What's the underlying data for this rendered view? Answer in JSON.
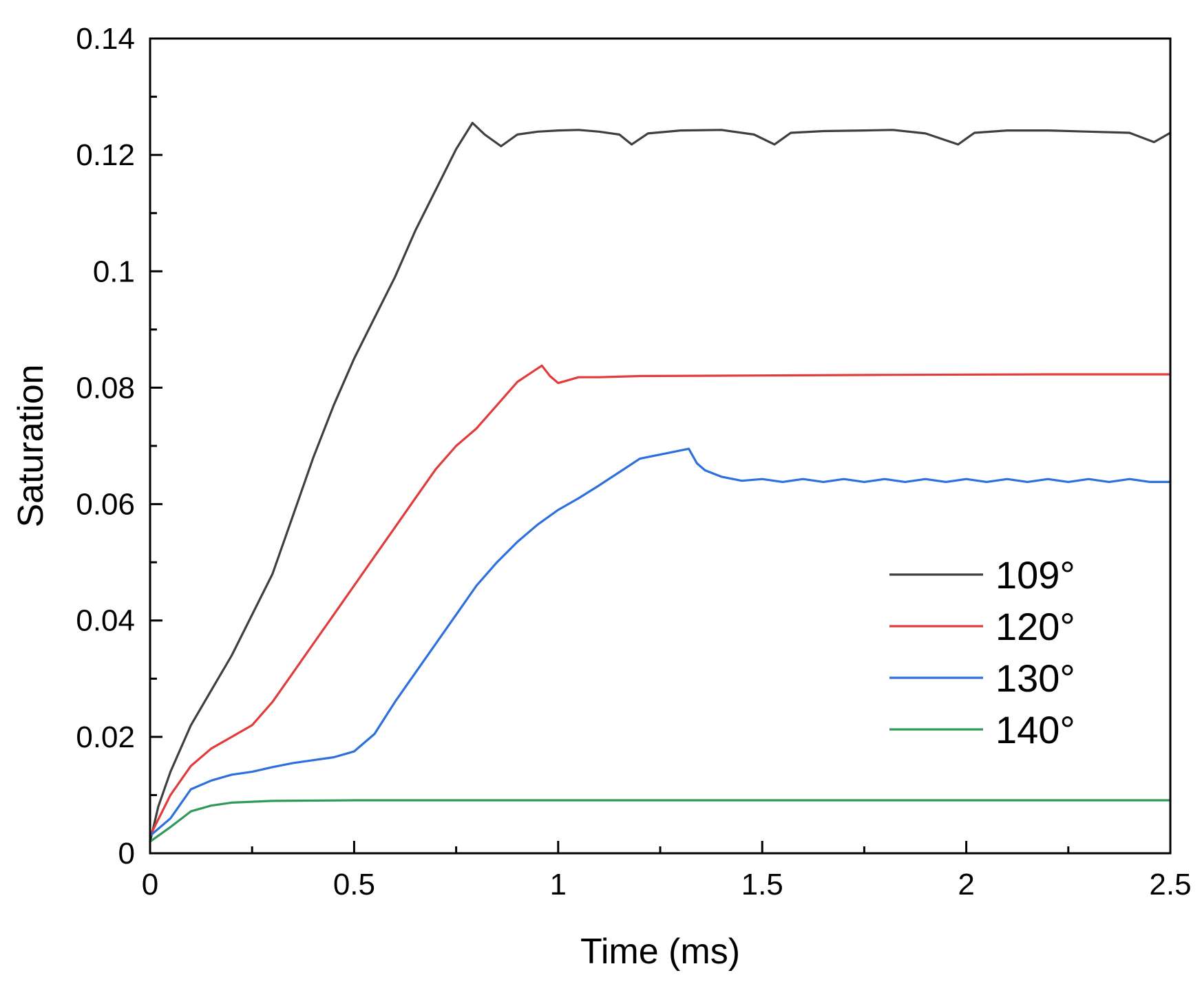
{
  "chart_data": {
    "type": "line",
    "title": "",
    "xlabel": "Time (ms)",
    "ylabel": "Saturation",
    "xlim": [
      0,
      2.5
    ],
    "ylim": [
      0,
      0.14
    ],
    "xticks": [
      0,
      0.5,
      1,
      1.5,
      2,
      2.5
    ],
    "xtick_labels": [
      "0",
      "0.5",
      "1",
      "1.5",
      "2",
      "2.5"
    ],
    "yticks": [
      0,
      0.02,
      0.04,
      0.06,
      0.08,
      0.1,
      0.12,
      0.14
    ],
    "ytick_labels": [
      "0",
      "0.02",
      "0.04",
      "0.06",
      "0.08",
      "0.1",
      "0.12",
      "0.14"
    ],
    "grid": false,
    "legend_position": "lower-right",
    "series": [
      {
        "name": "109°",
        "color": "#3f3f3f",
        "points": [
          [
            0,
            0.002
          ],
          [
            0.02,
            0.008
          ],
          [
            0.05,
            0.014
          ],
          [
            0.1,
            0.022
          ],
          [
            0.15,
            0.028
          ],
          [
            0.2,
            0.034
          ],
          [
            0.25,
            0.041
          ],
          [
            0.3,
            0.048
          ],
          [
            0.35,
            0.058
          ],
          [
            0.4,
            0.068
          ],
          [
            0.45,
            0.077
          ],
          [
            0.5,
            0.085
          ],
          [
            0.55,
            0.092
          ],
          [
            0.6,
            0.099
          ],
          [
            0.65,
            0.107
          ],
          [
            0.7,
            0.114
          ],
          [
            0.75,
            0.121
          ],
          [
            0.79,
            0.1255
          ],
          [
            0.82,
            0.1235
          ],
          [
            0.86,
            0.1215
          ],
          [
            0.9,
            0.1235
          ],
          [
            0.95,
            0.124
          ],
          [
            1.0,
            0.1242
          ],
          [
            1.05,
            0.1243
          ],
          [
            1.1,
            0.124
          ],
          [
            1.15,
            0.1235
          ],
          [
            1.18,
            0.1218
          ],
          [
            1.22,
            0.1237
          ],
          [
            1.3,
            0.1242
          ],
          [
            1.4,
            0.1243
          ],
          [
            1.48,
            0.1235
          ],
          [
            1.53,
            0.1218
          ],
          [
            1.57,
            0.1238
          ],
          [
            1.65,
            0.1241
          ],
          [
            1.75,
            0.1242
          ],
          [
            1.82,
            0.1243
          ],
          [
            1.9,
            0.1237
          ],
          [
            1.98,
            0.1218
          ],
          [
            2.02,
            0.1238
          ],
          [
            2.1,
            0.1242
          ],
          [
            2.2,
            0.1242
          ],
          [
            2.3,
            0.124
          ],
          [
            2.4,
            0.1238
          ],
          [
            2.46,
            0.1222
          ],
          [
            2.5,
            0.1238
          ]
        ]
      },
      {
        "name": "120°",
        "color": "#e03c3c",
        "points": [
          [
            0,
            0.003
          ],
          [
            0.05,
            0.01
          ],
          [
            0.1,
            0.015
          ],
          [
            0.15,
            0.018
          ],
          [
            0.2,
            0.02
          ],
          [
            0.25,
            0.022
          ],
          [
            0.3,
            0.026
          ],
          [
            0.35,
            0.031
          ],
          [
            0.4,
            0.036
          ],
          [
            0.45,
            0.041
          ],
          [
            0.5,
            0.046
          ],
          [
            0.55,
            0.051
          ],
          [
            0.6,
            0.056
          ],
          [
            0.65,
            0.061
          ],
          [
            0.7,
            0.066
          ],
          [
            0.75,
            0.07
          ],
          [
            0.8,
            0.073
          ],
          [
            0.85,
            0.077
          ],
          [
            0.9,
            0.081
          ],
          [
            0.96,
            0.0838
          ],
          [
            0.98,
            0.082
          ],
          [
            1.0,
            0.0808
          ],
          [
            1.02,
            0.0812
          ],
          [
            1.05,
            0.0818
          ],
          [
            1.1,
            0.0818
          ],
          [
            1.2,
            0.082
          ],
          [
            1.5,
            0.0821
          ],
          [
            1.8,
            0.0822
          ],
          [
            2.2,
            0.0823
          ],
          [
            2.5,
            0.0823
          ]
        ]
      },
      {
        "name": "130°",
        "color": "#2d6fdc",
        "points": [
          [
            0,
            0.003
          ],
          [
            0.05,
            0.006
          ],
          [
            0.1,
            0.011
          ],
          [
            0.15,
            0.0125
          ],
          [
            0.2,
            0.0135
          ],
          [
            0.25,
            0.014
          ],
          [
            0.3,
            0.0148
          ],
          [
            0.35,
            0.0155
          ],
          [
            0.4,
            0.016
          ],
          [
            0.45,
            0.0165
          ],
          [
            0.5,
            0.0175
          ],
          [
            0.55,
            0.0205
          ],
          [
            0.6,
            0.026
          ],
          [
            0.65,
            0.031
          ],
          [
            0.7,
            0.036
          ],
          [
            0.75,
            0.041
          ],
          [
            0.8,
            0.046
          ],
          [
            0.85,
            0.05
          ],
          [
            0.9,
            0.0535
          ],
          [
            0.95,
            0.0565
          ],
          [
            1.0,
            0.059
          ],
          [
            1.05,
            0.061
          ],
          [
            1.1,
            0.0632
          ],
          [
            1.15,
            0.0655
          ],
          [
            1.2,
            0.0678
          ],
          [
            1.32,
            0.0695
          ],
          [
            1.34,
            0.067
          ],
          [
            1.36,
            0.0658
          ],
          [
            1.4,
            0.0647
          ],
          [
            1.45,
            0.064
          ],
          [
            1.5,
            0.0643
          ],
          [
            1.55,
            0.0638
          ],
          [
            1.6,
            0.0643
          ],
          [
            1.65,
            0.0638
          ],
          [
            1.7,
            0.0643
          ],
          [
            1.75,
            0.0638
          ],
          [
            1.8,
            0.0643
          ],
          [
            1.85,
            0.0638
          ],
          [
            1.9,
            0.0643
          ],
          [
            1.95,
            0.0638
          ],
          [
            2.0,
            0.0643
          ],
          [
            2.05,
            0.0638
          ],
          [
            2.1,
            0.0643
          ],
          [
            2.15,
            0.0638
          ],
          [
            2.2,
            0.0643
          ],
          [
            2.25,
            0.0638
          ],
          [
            2.3,
            0.0643
          ],
          [
            2.35,
            0.0638
          ],
          [
            2.4,
            0.0643
          ],
          [
            2.45,
            0.0638
          ],
          [
            2.5,
            0.0638
          ]
        ]
      },
      {
        "name": "140°",
        "color": "#2e9a5a",
        "points": [
          [
            0,
            0.002
          ],
          [
            0.02,
            0.003
          ],
          [
            0.05,
            0.0045
          ],
          [
            0.1,
            0.0072
          ],
          [
            0.15,
            0.0082
          ],
          [
            0.2,
            0.0087
          ],
          [
            0.3,
            0.009
          ],
          [
            0.5,
            0.0091
          ],
          [
            1.0,
            0.0091
          ],
          [
            1.5,
            0.0091
          ],
          [
            2.0,
            0.0091
          ],
          [
            2.5,
            0.0091
          ]
        ]
      }
    ]
  }
}
